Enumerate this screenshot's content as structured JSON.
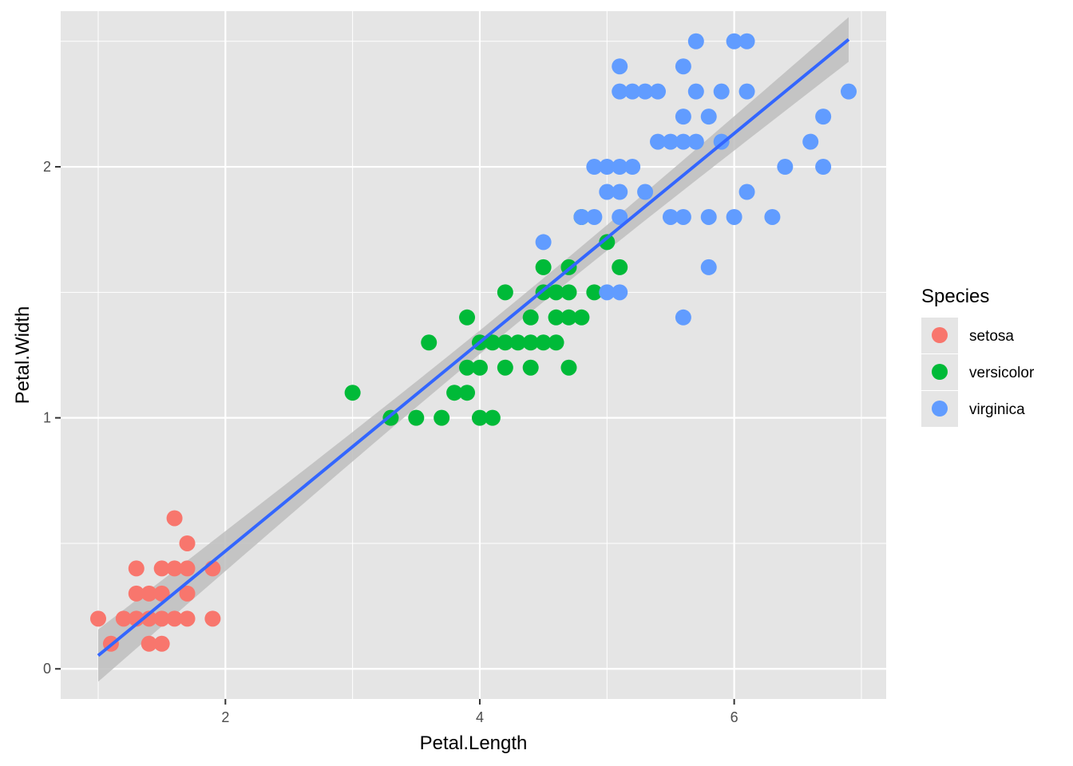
{
  "chart_data": {
    "type": "scatter",
    "xlabel": "Petal.Length",
    "ylabel": "Petal.Width",
    "xlim": [
      0.705,
      7.195
    ],
    "ylim": [
      -0.12,
      2.62
    ],
    "xticks": [
      2,
      4,
      6
    ],
    "yticks": [
      0,
      1,
      2
    ],
    "grid": true,
    "legend": {
      "title": "Species",
      "position": "right"
    },
    "colors": {
      "panel": "#e5e5e5",
      "grid": "#ffffff",
      "fit": "#3366ff",
      "band": "#bebebe"
    },
    "series": [
      {
        "name": "setosa",
        "color": "#f8766d",
        "points": [
          [
            1.0,
            0.2
          ],
          [
            1.1,
            0.1
          ],
          [
            1.2,
            0.2
          ],
          [
            1.3,
            0.2
          ],
          [
            1.3,
            0.3
          ],
          [
            1.3,
            0.4
          ],
          [
            1.4,
            0.1
          ],
          [
            1.4,
            0.2
          ],
          [
            1.4,
            0.3
          ],
          [
            1.5,
            0.1
          ],
          [
            1.5,
            0.2
          ],
          [
            1.5,
            0.3
          ],
          [
            1.5,
            0.4
          ],
          [
            1.6,
            0.2
          ],
          [
            1.6,
            0.4
          ],
          [
            1.6,
            0.6
          ],
          [
            1.7,
            0.2
          ],
          [
            1.7,
            0.3
          ],
          [
            1.7,
            0.4
          ],
          [
            1.7,
            0.5
          ],
          [
            1.9,
            0.2
          ],
          [
            1.9,
            0.4
          ]
        ]
      },
      {
        "name": "versicolor",
        "color": "#00ba38",
        "points": [
          [
            3.0,
            1.1
          ],
          [
            3.3,
            1.0
          ],
          [
            3.5,
            1.0
          ],
          [
            3.6,
            1.3
          ],
          [
            3.7,
            1.0
          ],
          [
            3.8,
            1.1
          ],
          [
            3.9,
            1.1
          ],
          [
            3.9,
            1.2
          ],
          [
            3.9,
            1.4
          ],
          [
            4.0,
            1.0
          ],
          [
            4.0,
            1.2
          ],
          [
            4.0,
            1.3
          ],
          [
            4.1,
            1.0
          ],
          [
            4.1,
            1.3
          ],
          [
            4.2,
            1.2
          ],
          [
            4.2,
            1.3
          ],
          [
            4.2,
            1.5
          ],
          [
            4.3,
            1.3
          ],
          [
            4.4,
            1.2
          ],
          [
            4.4,
            1.3
          ],
          [
            4.4,
            1.4
          ],
          [
            4.5,
            1.3
          ],
          [
            4.5,
            1.5
          ],
          [
            4.5,
            1.6
          ],
          [
            4.6,
            1.3
          ],
          [
            4.6,
            1.4
          ],
          [
            4.6,
            1.5
          ],
          [
            4.7,
            1.2
          ],
          [
            4.7,
            1.4
          ],
          [
            4.7,
            1.5
          ],
          [
            4.7,
            1.6
          ],
          [
            4.8,
            1.4
          ],
          [
            4.8,
            1.8
          ],
          [
            4.9,
            1.5
          ],
          [
            5.0,
            1.7
          ],
          [
            5.1,
            1.6
          ]
        ]
      },
      {
        "name": "virginica",
        "color": "#619cff",
        "points": [
          [
            4.5,
            1.7
          ],
          [
            4.8,
            1.8
          ],
          [
            4.9,
            1.8
          ],
          [
            4.9,
            2.0
          ],
          [
            5.0,
            1.5
          ],
          [
            5.0,
            1.9
          ],
          [
            5.0,
            2.0
          ],
          [
            5.1,
            1.5
          ],
          [
            5.1,
            1.8
          ],
          [
            5.1,
            1.9
          ],
          [
            5.1,
            2.0
          ],
          [
            5.1,
            2.3
          ],
          [
            5.1,
            2.4
          ],
          [
            5.2,
            2.0
          ],
          [
            5.2,
            2.3
          ],
          [
            5.3,
            1.9
          ],
          [
            5.3,
            2.3
          ],
          [
            5.4,
            2.1
          ],
          [
            5.4,
            2.3
          ],
          [
            5.5,
            1.8
          ],
          [
            5.5,
            2.1
          ],
          [
            5.6,
            1.4
          ],
          [
            5.6,
            1.8
          ],
          [
            5.6,
            2.1
          ],
          [
            5.6,
            2.2
          ],
          [
            5.6,
            2.4
          ],
          [
            5.7,
            2.1
          ],
          [
            5.7,
            2.3
          ],
          [
            5.7,
            2.5
          ],
          [
            5.8,
            1.6
          ],
          [
            5.8,
            1.8
          ],
          [
            5.8,
            2.2
          ],
          [
            5.9,
            2.1
          ],
          [
            5.9,
            2.3
          ],
          [
            6.0,
            1.8
          ],
          [
            6.0,
            2.5
          ],
          [
            6.1,
            1.9
          ],
          [
            6.1,
            2.3
          ],
          [
            6.1,
            2.5
          ],
          [
            6.3,
            1.8
          ],
          [
            6.4,
            2.0
          ],
          [
            6.6,
            2.1
          ],
          [
            6.7,
            2.0
          ],
          [
            6.7,
            2.2
          ],
          [
            6.9,
            2.3
          ]
        ]
      }
    ],
    "fit": {
      "method": "lm",
      "x_range": [
        1.0,
        6.9
      ],
      "intercept": -0.363,
      "slope": 0.416
    }
  }
}
